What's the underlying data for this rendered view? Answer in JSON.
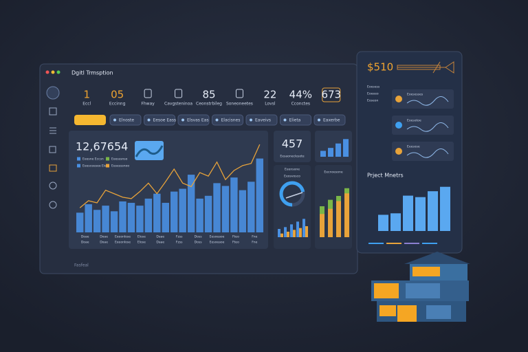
{
  "window": {
    "title": "Dgitl Trmsption",
    "footer": "Fasfeal",
    "stats": [
      {
        "value": "1",
        "label": "Eccl"
      },
      {
        "value": "05",
        "label": "Eccinng"
      },
      {
        "label": "Fhway"
      },
      {
        "label": "Cavgsteninoa"
      },
      {
        "value": "85",
        "label": "Ceonstrbileg"
      },
      {
        "label": "Soneoneetes"
      },
      {
        "value": "22",
        "label": "Lovsl"
      },
      {
        "value": "44%",
        "label": "Cconctes"
      },
      {
        "value": "673"
      }
    ],
    "tabs": [
      "Elnoste",
      "Eesoe Eass",
      "Elsvas Eas",
      "Elacisnes",
      "Eaveivs",
      "Elieta",
      "Eaxerbe"
    ]
  },
  "main_chart": {
    "type": "bar",
    "headline": "12,67654",
    "legend": [
      {
        "text": "Eeesne Eccsn",
        "color": "#4a90e2"
      },
      {
        "text": "Eeesssnso",
        "color": "#7ab648"
      },
      {
        "text": "Eeesceesee Eiee",
        "color": "#4a90e2"
      },
      {
        "text": "Eesesssnoo",
        "color": "#e8a33a"
      }
    ],
    "categories": [
      "Doae",
      "Doae",
      "Eeeonlose",
      "Elose",
      "Daae",
      "Fzss",
      "Doss",
      "Eesoeaoe",
      "Fteo",
      "Fne"
    ],
    "ylim": [
      0,
      130
    ],
    "series": [
      {
        "color": "#4a90e2",
        "values": [
          28,
          40,
          32,
          38,
          30,
          44,
          42,
          38,
          48,
          55,
          42,
          58,
          62,
          82,
          48,
          52,
          70,
          66,
          78,
          60,
          72,
          105
        ]
      },
      {
        "color": "#e8a33a",
        "values": [
          35,
          45,
          42,
          60,
          55,
          50,
          48,
          58,
          70,
          55,
          72,
          90,
          70,
          65,
          85,
          80,
          100,
          75,
          88,
          95,
          98,
          125
        ]
      }
    ]
  },
  "kpi": {
    "value": "457",
    "label": "Eesaoneclesote"
  },
  "mini_bars": {
    "color": "#4a90e2",
    "ylim": [
      0,
      70
    ],
    "values": [
      20,
      30,
      45,
      60
    ]
  },
  "gauge": {
    "title": "Eeensone",
    "label": "Eeosvosco",
    "value": 72,
    "max": 100
  },
  "gauge_bars": {
    "ylim": [
      0,
      60
    ],
    "series": [
      {
        "color": "#4a90e2",
        "values": [
          18,
          22,
          28,
          34,
          40
        ]
      },
      {
        "color": "#e8a33a",
        "values": [
          8,
          12,
          16,
          20,
          24
        ]
      }
    ]
  },
  "combo_bars": {
    "title": "Eecnoesone",
    "ylim": [
      0,
      80
    ],
    "series": [
      {
        "color": "#7ab648",
        "values": [
          48,
          58,
          64,
          76
        ]
      },
      {
        "color": "#e8a33a",
        "values": [
          36,
          44,
          56,
          68
        ]
      }
    ]
  },
  "side": {
    "price": "$510",
    "items": [
      "Eoesess",
      "Eoeeeo",
      "Eoseon"
    ],
    "cards": [
      "Eoesesses",
      "Eoesotoe",
      "Eeesose"
    ],
    "chart": {
      "title": "Prject Mnetrs",
      "color": "#5aa8f0",
      "ylim": [
        0,
        70
      ],
      "values": [
        22,
        24,
        48,
        46,
        54,
        60
      ]
    }
  }
}
